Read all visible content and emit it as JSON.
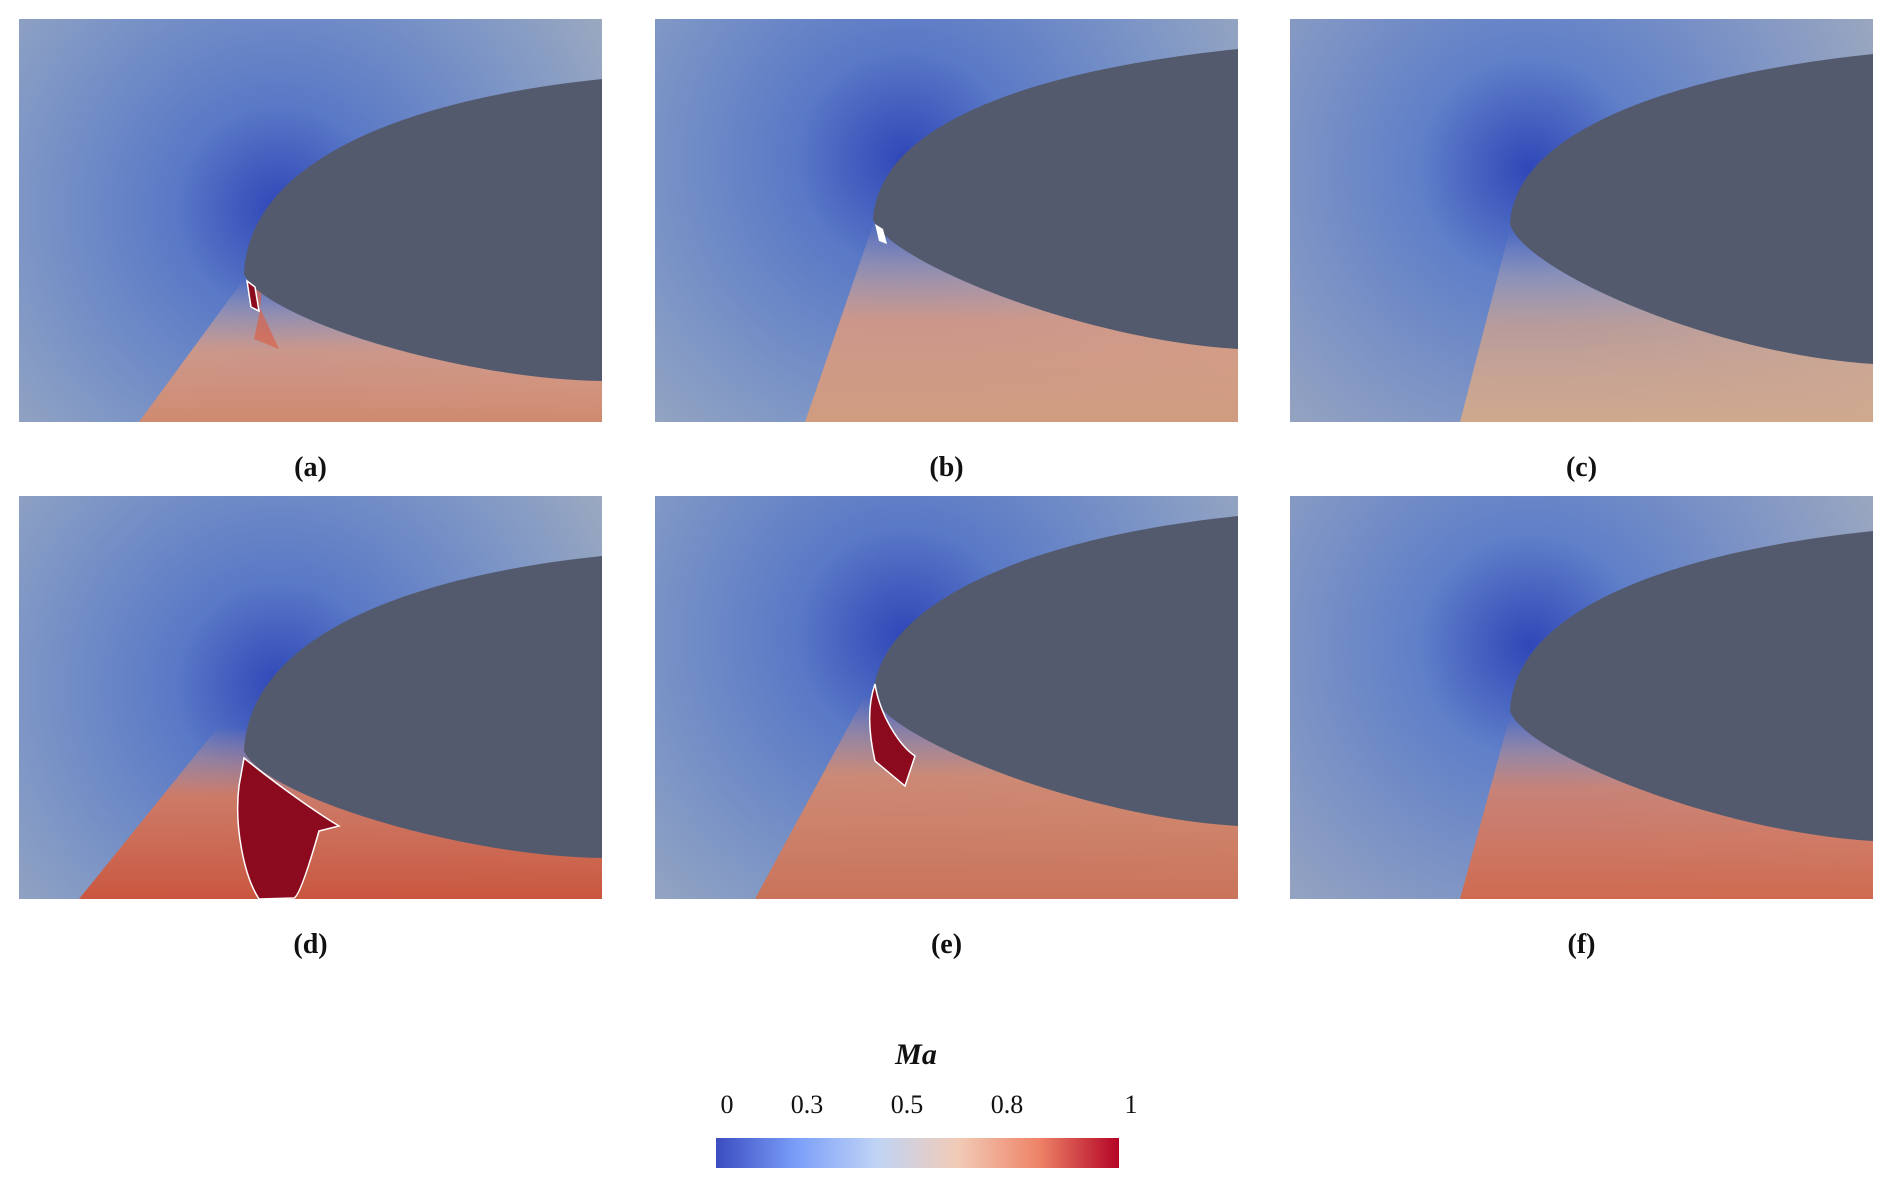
{
  "panels": [
    {
      "id": "a",
      "caption": "(a)"
    },
    {
      "id": "b",
      "caption": "(b)"
    },
    {
      "id": "c",
      "caption": "(c)"
    },
    {
      "id": "d",
      "caption": "(d)"
    },
    {
      "id": "e",
      "caption": "(e)"
    },
    {
      "id": "f",
      "caption": "(f)"
    }
  ],
  "colorbar": {
    "title": "Ma",
    "ticks": [
      "0",
      "0.3",
      "0.5",
      "0.8",
      "1"
    ],
    "min": 0,
    "max": 1,
    "colors": [
      "#3b4cc0",
      "#7b9ff9",
      "#c0d4f5",
      "#f2cbb7",
      "#ee8468",
      "#b40426"
    ]
  },
  "colors": {
    "body": "#545a6e",
    "low_mach": "#2f47b8",
    "supersonic": "#8b0a1e"
  }
}
